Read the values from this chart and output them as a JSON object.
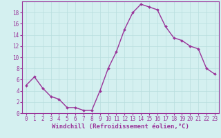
{
  "x": [
    0,
    1,
    2,
    3,
    4,
    5,
    6,
    7,
    8,
    9,
    10,
    11,
    12,
    13,
    14,
    15,
    16,
    17,
    18,
    19,
    20,
    21,
    22,
    23
  ],
  "y": [
    5,
    6.5,
    4.5,
    3,
    2.5,
    1,
    1,
    0.5,
    0.5,
    4,
    8,
    11,
    15,
    18,
    19.5,
    19,
    18.5,
    15.5,
    13.5,
    13,
    12,
    11.5,
    8,
    7
  ],
  "line_color": "#993399",
  "marker_color": "#993399",
  "bg_color": "#d4f0f0",
  "grid_color": "#b8dede",
  "xlabel": "Windchill (Refroidissement éolien,°C)",
  "xlim": [
    -0.5,
    23.5
  ],
  "ylim": [
    0,
    20
  ],
  "yticks": [
    0,
    2,
    4,
    6,
    8,
    10,
    12,
    14,
    16,
    18
  ],
  "xticks": [
    0,
    1,
    2,
    3,
    4,
    5,
    6,
    7,
    8,
    9,
    10,
    11,
    12,
    13,
    14,
    15,
    16,
    17,
    18,
    19,
    20,
    21,
    22,
    23
  ],
  "font_size_ticks": 5.5,
  "font_size_xlabel": 6.5,
  "marker_size": 2.0,
  "line_width": 1.0
}
